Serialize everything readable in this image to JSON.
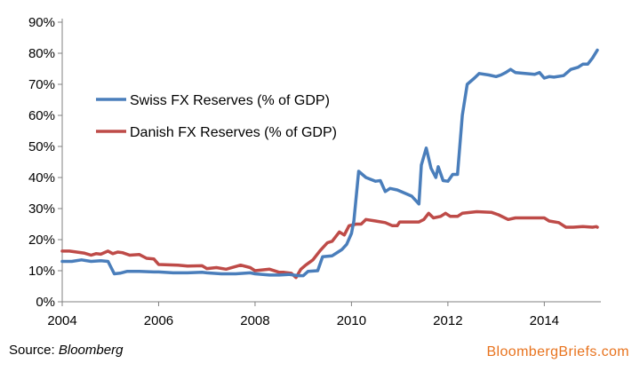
{
  "chart_data": {
    "type": "line",
    "title": "",
    "xlabel": "",
    "ylabel": "",
    "xlim": [
      2004,
      2015.1
    ],
    "ylim": [
      0,
      90
    ],
    "x_ticks": [
      2004,
      2006,
      2008,
      2010,
      2012,
      2014
    ],
    "x_tick_labels": [
      "2004",
      "2006",
      "2008",
      "2010",
      "2012",
      "2014"
    ],
    "y_ticks": [
      0,
      10,
      20,
      30,
      40,
      50,
      60,
      70,
      80,
      90
    ],
    "y_tick_labels": [
      "0%",
      "10%",
      "20%",
      "30%",
      "40%",
      "50%",
      "60%",
      "70%",
      "80%",
      "90%"
    ],
    "grid": false,
    "legend_position": "upper-left",
    "series": [
      {
        "name": "Swiss FX Reserves (% of GDP)",
        "color": "#4a7ebb",
        "points": [
          [
            2004.0,
            13
          ],
          [
            2004.2,
            13
          ],
          [
            2004.4,
            13.5
          ],
          [
            2004.6,
            13
          ],
          [
            2004.8,
            13.2
          ],
          [
            2004.95,
            13
          ],
          [
            2005.08,
            9
          ],
          [
            2005.2,
            9.2
          ],
          [
            2005.35,
            9.8
          ],
          [
            2005.6,
            9.8
          ],
          [
            2005.9,
            9.6
          ],
          [
            2006.0,
            9.6
          ],
          [
            2006.3,
            9.3
          ],
          [
            2006.6,
            9.3
          ],
          [
            2006.9,
            9.5
          ],
          [
            2007.0,
            9.3
          ],
          [
            2007.3,
            9.0
          ],
          [
            2007.6,
            9.0
          ],
          [
            2007.9,
            9.3
          ],
          [
            2008.0,
            9.0
          ],
          [
            2008.3,
            8.6
          ],
          [
            2008.5,
            8.6
          ],
          [
            2008.7,
            8.8
          ],
          [
            2008.9,
            8.4
          ],
          [
            2009.0,
            8.4
          ],
          [
            2009.1,
            9.8
          ],
          [
            2009.3,
            10.0
          ],
          [
            2009.4,
            14.5
          ],
          [
            2009.6,
            14.8
          ],
          [
            2009.8,
            16.8
          ],
          [
            2009.9,
            18.5
          ],
          [
            2010.0,
            22
          ],
          [
            2010.05,
            26
          ],
          [
            2010.15,
            42
          ],
          [
            2010.3,
            40
          ],
          [
            2010.5,
            38.8
          ],
          [
            2010.6,
            39
          ],
          [
            2010.7,
            35.5
          ],
          [
            2010.8,
            36.5
          ],
          [
            2010.95,
            36
          ],
          [
            2011.1,
            35
          ],
          [
            2011.25,
            34
          ],
          [
            2011.4,
            31.5
          ],
          [
            2011.45,
            44
          ],
          [
            2011.55,
            49.5
          ],
          [
            2011.65,
            43
          ],
          [
            2011.75,
            40
          ],
          [
            2011.8,
            43.5
          ],
          [
            2011.9,
            39
          ],
          [
            2012.0,
            38.8
          ],
          [
            2012.1,
            41
          ],
          [
            2012.2,
            41
          ],
          [
            2012.3,
            60
          ],
          [
            2012.4,
            70
          ],
          [
            2012.55,
            72
          ],
          [
            2012.65,
            73.5
          ],
          [
            2012.85,
            73
          ],
          [
            2013.0,
            72.5
          ],
          [
            2013.1,
            73
          ],
          [
            2013.2,
            73.8
          ],
          [
            2013.3,
            74.8
          ],
          [
            2013.4,
            73.8
          ],
          [
            2013.6,
            73.5
          ],
          [
            2013.8,
            73.2
          ],
          [
            2013.9,
            73.8
          ],
          [
            2014.0,
            72
          ],
          [
            2014.1,
            72.5
          ],
          [
            2014.2,
            72.3
          ],
          [
            2014.4,
            72.8
          ],
          [
            2014.55,
            74.8
          ],
          [
            2014.7,
            75.5
          ],
          [
            2014.8,
            76.5
          ],
          [
            2014.9,
            76.5
          ],
          [
            2015.0,
            78.5
          ],
          [
            2015.1,
            81
          ]
        ]
      },
      {
        "name": "Danish FX Reserves (% of GDP)",
        "color": "#be4b48",
        "points": [
          [
            2004.0,
            16.3
          ],
          [
            2004.15,
            16.3
          ],
          [
            2004.3,
            16.0
          ],
          [
            2004.45,
            15.7
          ],
          [
            2004.6,
            15.0
          ],
          [
            2004.7,
            15.5
          ],
          [
            2004.8,
            15.3
          ],
          [
            2004.95,
            16.3
          ],
          [
            2005.05,
            15.5
          ],
          [
            2005.15,
            16.0
          ],
          [
            2005.25,
            15.8
          ],
          [
            2005.4,
            15.0
          ],
          [
            2005.6,
            15.2
          ],
          [
            2005.75,
            14.0
          ],
          [
            2005.9,
            13.8
          ],
          [
            2006.0,
            12.0
          ],
          [
            2006.4,
            11.8
          ],
          [
            2006.6,
            11.5
          ],
          [
            2006.9,
            11.6
          ],
          [
            2007.0,
            10.7
          ],
          [
            2007.2,
            11.0
          ],
          [
            2007.4,
            10.5
          ],
          [
            2007.7,
            11.8
          ],
          [
            2007.9,
            11.0
          ],
          [
            2008.0,
            10.0
          ],
          [
            2008.3,
            10.5
          ],
          [
            2008.5,
            9.5
          ],
          [
            2008.6,
            9.5
          ],
          [
            2008.75,
            9.2
          ],
          [
            2008.85,
            7.8
          ],
          [
            2008.95,
            10.5
          ],
          [
            2009.05,
            11.8
          ],
          [
            2009.2,
            13.5
          ],
          [
            2009.35,
            16.5
          ],
          [
            2009.5,
            19
          ],
          [
            2009.6,
            19.5
          ],
          [
            2009.75,
            22.5
          ],
          [
            2009.85,
            21.5
          ],
          [
            2009.95,
            24.5
          ],
          [
            2010.1,
            25.0
          ],
          [
            2010.2,
            25.0
          ],
          [
            2010.3,
            26.5
          ],
          [
            2010.5,
            26
          ],
          [
            2010.7,
            25.5
          ],
          [
            2010.85,
            24.5
          ],
          [
            2010.95,
            24.5
          ],
          [
            2011.0,
            25.7
          ],
          [
            2011.2,
            25.7
          ],
          [
            2011.4,
            25.7
          ],
          [
            2011.5,
            26.5
          ],
          [
            2011.6,
            28.5
          ],
          [
            2011.7,
            27
          ],
          [
            2011.85,
            27.5
          ],
          [
            2011.95,
            28.5
          ],
          [
            2012.05,
            27.5
          ],
          [
            2012.2,
            27.5
          ],
          [
            2012.3,
            28.5
          ],
          [
            2012.6,
            29
          ],
          [
            2012.9,
            28.8
          ],
          [
            2013.05,
            28
          ],
          [
            2013.25,
            26.5
          ],
          [
            2013.4,
            27
          ],
          [
            2013.6,
            27
          ],
          [
            2013.8,
            27
          ],
          [
            2014.0,
            27
          ],
          [
            2014.1,
            26
          ],
          [
            2014.3,
            25.5
          ],
          [
            2014.45,
            24
          ],
          [
            2014.6,
            24
          ],
          [
            2014.8,
            24.2
          ],
          [
            2015.0,
            24
          ],
          [
            2015.08,
            24.2
          ],
          [
            2015.1,
            24
          ]
        ]
      }
    ]
  },
  "footer": {
    "source_prefix": "Source:",
    "source_name": "Bloomberg",
    "brand": "BloombergBriefs.com"
  }
}
